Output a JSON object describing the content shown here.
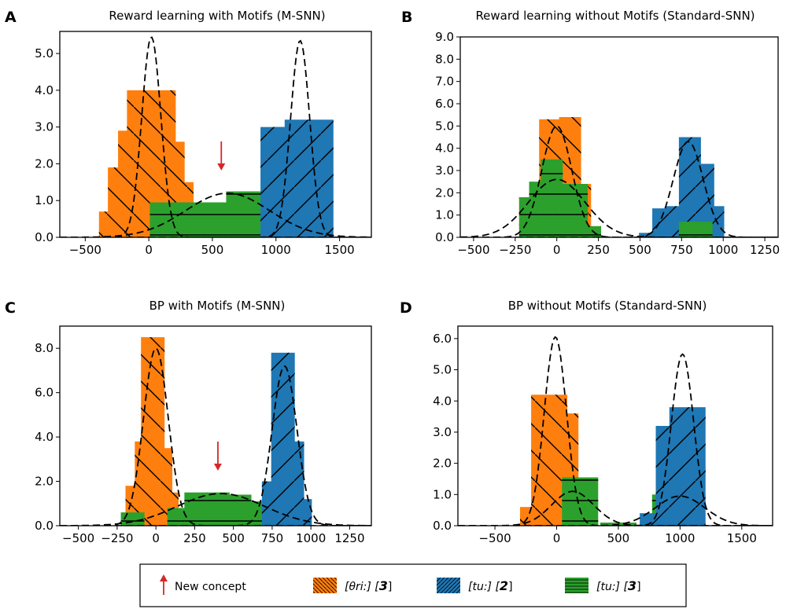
{
  "colors": {
    "orange": "#ff7f0e",
    "blue": "#1f77b4",
    "green": "#2ca02c",
    "arrow": "#d62728",
    "line": "#000000"
  },
  "chart_data": [
    {
      "panel": "A",
      "type": "bar",
      "title": "Reward learning with Motifs (M-SNN)",
      "xlim": [
        -700,
        1750
      ],
      "ylim": [
        0,
        5.6
      ],
      "xticks": [
        -500,
        0,
        500,
        1000,
        1500
      ],
      "xticklabels": [
        "−500",
        "0",
        "500",
        "1000",
        "1500"
      ],
      "yticks": [
        0,
        1,
        2,
        3,
        4,
        5
      ],
      "yticklabels": [
        "0.0",
        "1.0",
        "2.0",
        "3.0",
        "4.0",
        "5.0"
      ],
      "new_concept_x": 570,
      "series": [
        {
          "name": "orange",
          "bars": [
            [
              -200,
              0.7
            ],
            [
              -130,
              1.9
            ],
            [
              -50,
              2.9
            ],
            [
              20,
              4.0
            ],
            [
              90,
              2.6
            ],
            [
              160,
              1.5
            ]
          ]
        },
        {
          "name": "green",
          "bars": [
            [
              200,
              0.95
            ],
            [
              400,
              0.95
            ],
            [
              600,
              0.95
            ],
            [
              800,
              1.25
            ]
          ]
        },
        {
          "name": "blue",
          "bars": [
            [
              1070,
              3.0
            ],
            [
              1180,
              3.0
            ],
            [
              1260,
              3.2
            ]
          ]
        }
      ],
      "curves": [
        {
          "mu": 20,
          "sigma": 75,
          "peak": 5.45
        },
        {
          "mu": 1190,
          "sigma": 75,
          "peak": 5.35
        },
        {
          "mu": 620,
          "sigma": 330,
          "peak": 1.2
        }
      ]
    },
    {
      "panel": "B",
      "type": "bar",
      "title": "Reward learning without Motifs (Standard-SNN)",
      "xlim": [
        -580,
        1330
      ],
      "ylim": [
        0,
        9.0
      ],
      "xticks": [
        -500,
        -250,
        0,
        250,
        500,
        750,
        1000,
        1250
      ],
      "xticklabels": [
        "−500",
        "−250",
        "0",
        "250",
        "500",
        "750",
        "1000",
        "1250"
      ],
      "yticks": [
        0,
        1,
        2,
        3,
        4,
        5,
        6,
        7,
        8,
        9
      ],
      "yticklabels": [
        "0.0",
        "1.0",
        "2.0",
        "3.0",
        "4.0",
        "5.0",
        "6.0",
        "7.0",
        "8.0",
        "9.0"
      ],
      "series": [
        {
          "name": "orange",
          "bars": [
            [
              -160,
              1.8
            ],
            [
              -100,
              2.0
            ],
            [
              -40,
              5.3
            ],
            [
              20,
              4.0
            ],
            [
              80,
              5.4
            ],
            [
              140,
              2.4
            ],
            [
              200,
              0.5
            ]
          ]
        },
        {
          "name": "blue",
          "bars": [
            [
              560,
              0.2
            ],
            [
              640,
              1.3
            ],
            [
              720,
              1.4
            ],
            [
              800,
              4.5
            ],
            [
              880,
              3.3
            ],
            [
              940,
              1.4
            ]
          ]
        },
        {
          "name": "green",
          "bars": [
            [
              -160,
              1.8
            ],
            [
              -100,
              2.5
            ],
            [
              -30,
              3.5
            ],
            [
              40,
              2.4
            ],
            [
              120,
              2.4
            ],
            [
              200,
              0.5
            ],
            [
              800,
              0.7
            ],
            [
              870,
              0.7
            ]
          ]
        }
      ],
      "curves": [
        {
          "mu": 0,
          "sigma": 90,
          "peak": 5.0
        },
        {
          "mu": 790,
          "sigma": 90,
          "peak": 4.3
        },
        {
          "mu": 0,
          "sigma": 170,
          "peak": 2.6
        }
      ]
    },
    {
      "panel": "C",
      "type": "bar",
      "title": "BP with Motifs (M-SNN)",
      "xlim": [
        -620,
        1390
      ],
      "ylim": [
        0,
        9.0
      ],
      "xticks": [
        -500,
        -250,
        0,
        250,
        500,
        750,
        1000,
        1250
      ],
      "xticklabels": [
        "−500",
        "−250",
        "0",
        "250",
        "500",
        "750",
        "1000",
        "1250"
      ],
      "yticks": [
        0,
        2,
        4,
        6,
        8
      ],
      "yticklabels": [
        "0.0",
        "2.0",
        "4.0",
        "6.0",
        "8.0"
      ],
      "new_concept_x": 400,
      "series": [
        {
          "name": "orange",
          "bars": [
            [
              -120,
              1.8
            ],
            [
              -60,
              3.8
            ],
            [
              -20,
              8.5
            ],
            [
              30,
              3.5
            ],
            [
              70,
              1.5
            ]
          ]
        },
        {
          "name": "green",
          "bars": [
            [
              -150,
              0.6
            ],
            [
              150,
              0.8
            ],
            [
              260,
              1.5
            ],
            [
              400,
              1.5
            ],
            [
              540,
              1.4
            ],
            [
              680,
              1.1
            ]
          ]
        },
        {
          "name": "blue",
          "bars": [
            [
              760,
              2.0
            ],
            [
              820,
              7.8
            ],
            [
              880,
              3.8
            ],
            [
              930,
              1.2
            ]
          ]
        }
      ],
      "curves": [
        {
          "mu": 0,
          "sigma": 80,
          "peak": 8.0
        },
        {
          "mu": 830,
          "sigma": 80,
          "peak": 7.2
        },
        {
          "mu": 420,
          "sigma": 280,
          "peak": 1.45
        }
      ]
    },
    {
      "panel": "D",
      "type": "bar",
      "title": "BP without Motifs (Standard-SNN)",
      "xlim": [
        -800,
        1750
      ],
      "ylim": [
        0,
        6.4
      ],
      "xticks": [
        -500,
        0,
        500,
        1000,
        1500
      ],
      "xticklabels": [
        "−500",
        "0",
        "500",
        "1000",
        "1500"
      ],
      "yticks": [
        0,
        1,
        2,
        3,
        4,
        5,
        6
      ],
      "yticklabels": [
        "0.0",
        "1.0",
        "2.0",
        "3.0",
        "4.0",
        "5.0",
        "6.0"
      ],
      "series": [
        {
          "name": "orange",
          "bars": [
            [
              -150,
              0.6
            ],
            [
              -60,
              4.2
            ],
            [
              30,
              3.6
            ],
            [
              100,
              1.0
            ]
          ]
        },
        {
          "name": "green",
          "bars": [
            [
              190,
              1.55
            ],
            [
              500,
              0.1
            ],
            [
              920,
              1.0
            ],
            [
              1020,
              1.65
            ]
          ]
        },
        {
          "name": "blue",
          "bars": [
            [
              820,
              0.4
            ],
            [
              950,
              3.2
            ],
            [
              1060,
              3.8
            ]
          ]
        }
      ],
      "curves": [
        {
          "mu": -10,
          "sigma": 90,
          "peak": 6.05
        },
        {
          "mu": 1020,
          "sigma": 90,
          "peak": 5.5
        },
        {
          "mu": 130,
          "sigma": 170,
          "peak": 1.1
        },
        {
          "mu": 1000,
          "sigma": 200,
          "peak": 0.95
        }
      ]
    }
  ],
  "legend": {
    "new_concept": "New concept",
    "items": [
      {
        "color": "orange",
        "label_prefix": "[θri:] [",
        "digit": "3",
        "label_suffix": "]"
      },
      {
        "color": "blue",
        "label_prefix": "[tu:] [",
        "digit": "2",
        "label_suffix": "]"
      },
      {
        "color": "green",
        "label_prefix": "[tu:] [",
        "digit": "3",
        "label_suffix": "]"
      }
    ]
  }
}
